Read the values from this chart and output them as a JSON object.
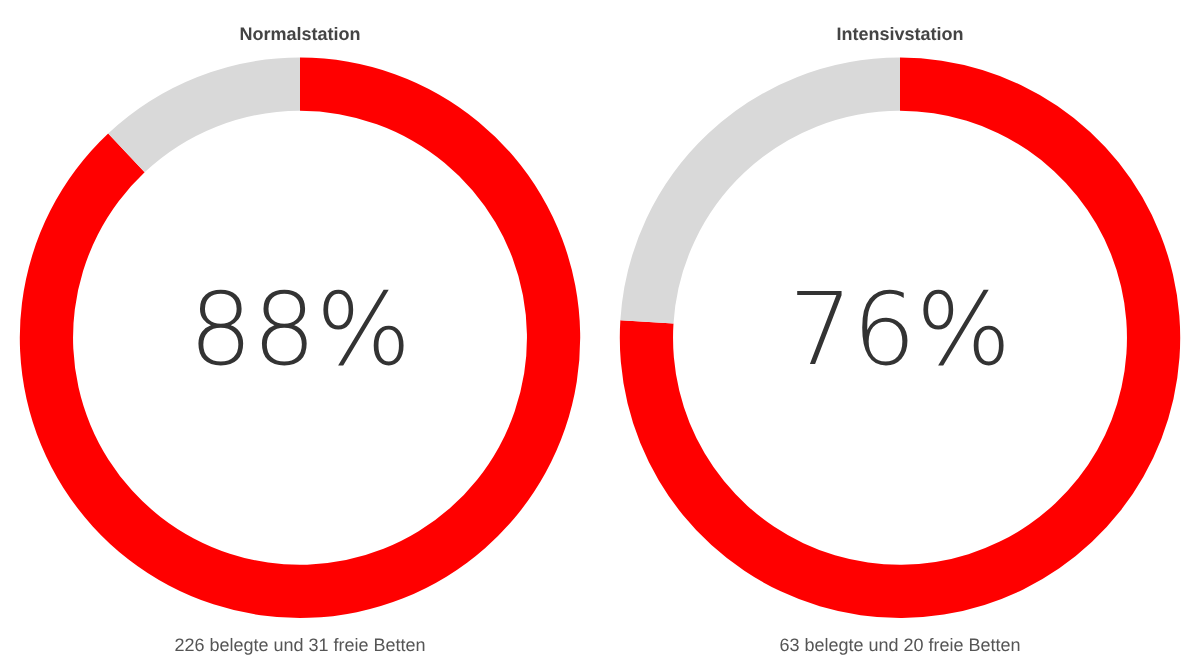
{
  "chart_data": [
    {
      "type": "donut",
      "title": "Normalstation",
      "categories": [
        null,
        null
      ],
      "values": [
        88,
        12
      ],
      "colors": [
        "#ff0000",
        "#d9d9d9"
      ],
      "legend": false,
      "annotations": [
        "88%",
        "226 belegte und 31 freie Betten"
      ]
    },
    {
      "type": "donut",
      "title": "Intensivstation",
      "categories": [
        null,
        null
      ],
      "values": [
        76,
        24
      ],
      "colors": [
        "#ff0000",
        "#d9d9d9"
      ],
      "legend": false,
      "annotations": [
        "76%",
        "63 belegte und 20 freie Betten"
      ]
    }
  ]
}
